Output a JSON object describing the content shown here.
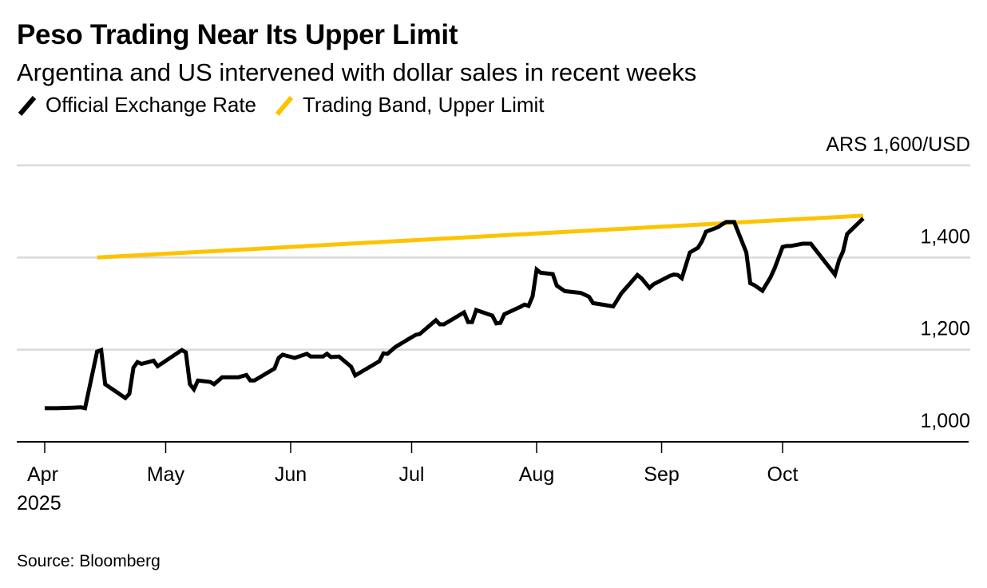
{
  "header": {
    "title": "Peso Trading Near Its Upper Limit",
    "subtitle": "Argentina and US intervened with dollar sales in recent weeks"
  },
  "legend": [
    {
      "label": "Official Exchange Rate",
      "color": "#000000",
      "icon": "slash-line-icon"
    },
    {
      "label": "Trading Band, Upper Limit",
      "color": "#FCC400",
      "icon": "slash-line-icon"
    }
  ],
  "source": "Source: Bloomberg",
  "chart_data": {
    "type": "line",
    "title": "Peso Trading Near Its Upper Limit",
    "subtitle": "Argentina and US intervened with dollar sales in recent weeks",
    "xlabel": "",
    "ylabel": "ARS per USD",
    "y_unit_label": "ARS 1,600/USD",
    "ylim": [
      1000,
      1600
    ],
    "yticks": [
      1000,
      1200,
      1400,
      1600
    ],
    "ytick_labels": [
      "1,000",
      "1,200",
      "1,400",
      "ARS 1,600/USD"
    ],
    "xlim": [
      "2025-04-01",
      "2025-10-31"
    ],
    "xticks": [
      "2025-04-01",
      "2025-05-01",
      "2025-06-01",
      "2025-07-01",
      "2025-08-01",
      "2025-09-01",
      "2025-10-01"
    ],
    "xtick_labels": [
      "Apr",
      "May",
      "Jun",
      "Jul",
      "Aug",
      "Sep",
      "Oct"
    ],
    "xtick_year_label": "2025",
    "grid": true,
    "legend_position": "top-left",
    "series": [
      {
        "name": "Official Exchange Rate",
        "color": "#000000",
        "points": [
          [
            "2025-04-01",
            1073
          ],
          [
            "2025-04-04",
            1073
          ],
          [
            "2025-04-08",
            1074
          ],
          [
            "2025-04-10",
            1075
          ],
          [
            "2025-04-11",
            1073
          ],
          [
            "2025-04-14",
            1196
          ],
          [
            "2025-04-15",
            1199
          ],
          [
            "2025-04-16",
            1125
          ],
          [
            "2025-04-21",
            1095
          ],
          [
            "2025-04-22",
            1104
          ],
          [
            "2025-04-23",
            1161
          ],
          [
            "2025-04-24",
            1173
          ],
          [
            "2025-04-25",
            1169
          ],
          [
            "2025-04-28",
            1176
          ],
          [
            "2025-04-29",
            1164
          ],
          [
            "2025-05-05",
            1199
          ],
          [
            "2025-05-06",
            1194
          ],
          [
            "2025-05-07",
            1125
          ],
          [
            "2025-05-08",
            1114
          ],
          [
            "2025-05-09",
            1133
          ],
          [
            "2025-05-12",
            1130
          ],
          [
            "2025-05-13",
            1125
          ],
          [
            "2025-05-15",
            1140
          ],
          [
            "2025-05-19",
            1140
          ],
          [
            "2025-05-21",
            1145
          ],
          [
            "2025-05-22",
            1133
          ],
          [
            "2025-05-23",
            1133
          ],
          [
            "2025-05-28",
            1159
          ],
          [
            "2025-05-29",
            1182
          ],
          [
            "2025-05-30",
            1189
          ],
          [
            "2025-06-02",
            1182
          ],
          [
            "2025-06-05",
            1191
          ],
          [
            "2025-06-06",
            1185
          ],
          [
            "2025-06-09",
            1185
          ],
          [
            "2025-06-10",
            1191
          ],
          [
            "2025-06-11",
            1184
          ],
          [
            "2025-06-13",
            1185
          ],
          [
            "2025-06-16",
            1163
          ],
          [
            "2025-06-17",
            1144
          ],
          [
            "2025-06-23",
            1175
          ],
          [
            "2025-06-24",
            1192
          ],
          [
            "2025-06-25",
            1191
          ],
          [
            "2025-06-27",
            1206
          ],
          [
            "2025-07-01",
            1227
          ],
          [
            "2025-07-02",
            1232
          ],
          [
            "2025-07-03",
            1234
          ],
          [
            "2025-07-07",
            1264
          ],
          [
            "2025-07-08",
            1255
          ],
          [
            "2025-07-09",
            1255
          ],
          [
            "2025-07-14",
            1281
          ],
          [
            "2025-07-15",
            1260
          ],
          [
            "2025-07-16",
            1260
          ],
          [
            "2025-07-17",
            1286
          ],
          [
            "2025-07-21",
            1274
          ],
          [
            "2025-07-22",
            1257
          ],
          [
            "2025-07-23",
            1258
          ],
          [
            "2025-07-24",
            1277
          ],
          [
            "2025-07-28",
            1293
          ],
          [
            "2025-07-29",
            1298
          ],
          [
            "2025-07-30",
            1295
          ],
          [
            "2025-07-31",
            1316
          ],
          [
            "2025-08-01",
            1374
          ],
          [
            "2025-08-02",
            1367
          ],
          [
            "2025-08-05",
            1364
          ],
          [
            "2025-08-06",
            1339
          ],
          [
            "2025-08-08",
            1327
          ],
          [
            "2025-08-12",
            1323
          ],
          [
            "2025-08-14",
            1315
          ],
          [
            "2025-08-15",
            1301
          ],
          [
            "2025-08-20",
            1294
          ],
          [
            "2025-08-21",
            1308
          ],
          [
            "2025-08-22",
            1322
          ],
          [
            "2025-08-26",
            1362
          ],
          [
            "2025-08-27",
            1355
          ],
          [
            "2025-08-29",
            1334
          ],
          [
            "2025-08-30",
            1342
          ],
          [
            "2025-09-03",
            1360
          ],
          [
            "2025-09-04",
            1363
          ],
          [
            "2025-09-05",
            1362
          ],
          [
            "2025-09-06",
            1355
          ],
          [
            "2025-09-08",
            1411
          ],
          [
            "2025-09-10",
            1421
          ],
          [
            "2025-09-11",
            1435
          ],
          [
            "2025-09-12",
            1456
          ],
          [
            "2025-09-15",
            1466
          ],
          [
            "2025-09-16",
            1472
          ],
          [
            "2025-09-17",
            1477
          ],
          [
            "2025-09-19",
            1477
          ],
          [
            "2025-09-22",
            1411
          ],
          [
            "2025-09-23",
            1344
          ],
          [
            "2025-09-24",
            1340
          ],
          [
            "2025-09-26",
            1328
          ],
          [
            "2025-09-28",
            1357
          ],
          [
            "2025-09-29",
            1376
          ],
          [
            "2025-10-01",
            1423
          ],
          [
            "2025-10-02",
            1425
          ],
          [
            "2025-10-03",
            1425
          ],
          [
            "2025-10-06",
            1430
          ],
          [
            "2025-10-08",
            1430
          ],
          [
            "2025-10-14",
            1363
          ],
          [
            "2025-10-15",
            1394
          ],
          [
            "2025-10-16",
            1413
          ],
          [
            "2025-10-17",
            1451
          ],
          [
            "2025-10-21",
            1485
          ]
        ]
      },
      {
        "name": "Trading Band, Upper Limit",
        "color": "#FCC400",
        "points": [
          [
            "2025-04-14",
            1400
          ],
          [
            "2025-10-21",
            1491
          ]
        ]
      }
    ]
  }
}
